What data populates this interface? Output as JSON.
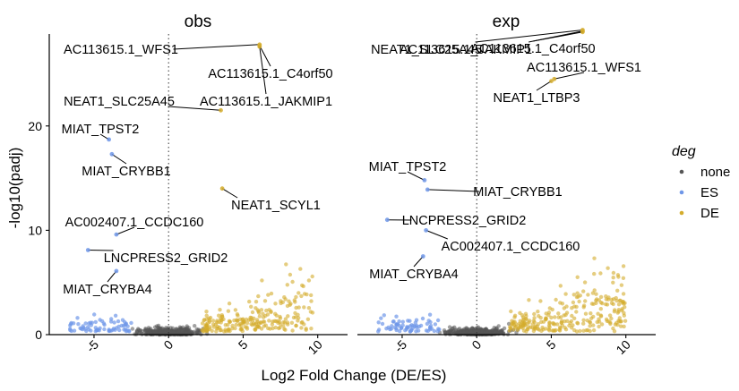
{
  "chart_data": {
    "type": "scatter",
    "facets": [
      "obs",
      "exp"
    ],
    "xlabel": "Log2 Fold Change (DE/ES)",
    "ylabel": "-log10(padj)",
    "xlim": [
      -8,
      12
    ],
    "ylim": [
      0,
      29.5
    ],
    "x_ticks": [
      -5,
      0,
      5,
      10
    ],
    "x_tick_labels": [
      "-5",
      "0",
      "5",
      "10"
    ],
    "y_ticks": [
      0,
      10,
      20
    ],
    "y_tick_labels": [
      "0",
      "10",
      "20"
    ],
    "vline_x": 0,
    "grid": false,
    "legend": {
      "title": "deg",
      "position": "right",
      "entries": [
        {
          "label": "none",
          "color": "#555555"
        },
        {
          "label": "ES",
          "color": "#6f97e8"
        },
        {
          "label": "DE",
          "color": "#d4ac2c"
        }
      ]
    },
    "labeled_points": {
      "obs": [
        {
          "label": "AC113615.1_WFS1",
          "x": 6.1,
          "y": 27.8,
          "group": "DE"
        },
        {
          "label": "AC113615.1_C4orf50",
          "x": 6.1,
          "y": 27.7,
          "group": "DE"
        },
        {
          "label": "AC113615.1_JAKMIP1",
          "x": 6.1,
          "y": 27.6,
          "group": "DE"
        },
        {
          "label": "NEAT1_SLC25A45",
          "x": 3.5,
          "y": 21.5,
          "group": "DE"
        },
        {
          "label": "MIAT_TPST2",
          "x": -4.0,
          "y": 18.7,
          "group": "ES"
        },
        {
          "label": "MIAT_CRYBB1",
          "x": -3.8,
          "y": 17.3,
          "group": "ES"
        },
        {
          "label": "NEAT1_SCYL1",
          "x": 3.6,
          "y": 14.0,
          "group": "DE"
        },
        {
          "label": "AC002407.1_CCDC160",
          "x": -3.5,
          "y": 9.6,
          "group": "ES"
        },
        {
          "label": "LNCPRESS2_GRID2",
          "x": -5.4,
          "y": 8.1,
          "group": "ES"
        },
        {
          "label": "MIAT_CRYBA4",
          "x": -3.5,
          "y": 6.1,
          "group": "ES"
        }
      ],
      "exp": [
        {
          "label": "NEAT1_SLC25A45",
          "x": 7.1,
          "y": 29.2,
          "group": "DE"
        },
        {
          "label": "AC113615.1_JAKMIP1",
          "x": 7.1,
          "y": 29.1,
          "group": "DE"
        },
        {
          "label": "AC113615.1_C4orf50",
          "x": 7.1,
          "y": 29.0,
          "group": "DE"
        },
        {
          "label": "AC113615.1_WFS1",
          "x": 5.2,
          "y": 24.5,
          "group": "DE"
        },
        {
          "label": "NEAT1_LTBP3",
          "x": 5.0,
          "y": 24.3,
          "group": "DE"
        },
        {
          "label": "MIAT_TPST2",
          "x": -3.5,
          "y": 14.8,
          "group": "ES"
        },
        {
          "label": "MIAT_CRYBB1",
          "x": -3.3,
          "y": 13.9,
          "group": "ES"
        },
        {
          "label": "LNCPRESS2_GRID2",
          "x": -6.0,
          "y": 11.0,
          "group": "ES"
        },
        {
          "label": "AC002407.1_CCDC160",
          "x": -3.4,
          "y": 10.0,
          "group": "ES"
        },
        {
          "label": "MIAT_CRYBA4",
          "x": -3.6,
          "y": 7.5,
          "group": "ES"
        }
      ]
    }
  }
}
